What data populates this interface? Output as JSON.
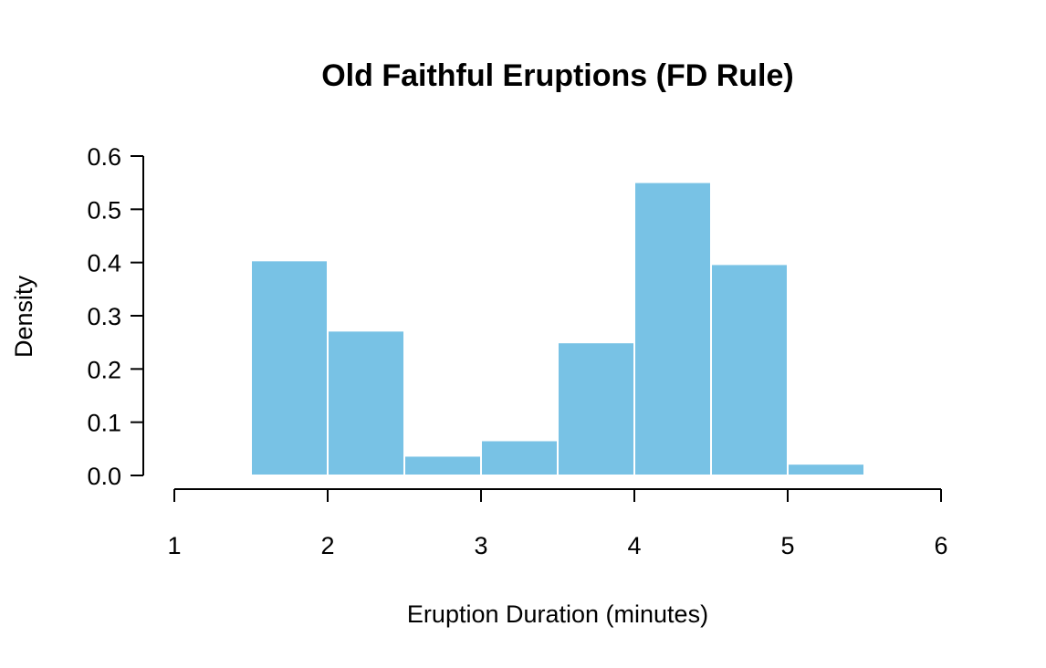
{
  "chart_data": {
    "type": "histogram",
    "title": "Old Faithful Eruptions (FD Rule)",
    "xlabel": "Eruption Duration (minutes)",
    "ylabel": "Density",
    "xlim": [
      1,
      6
    ],
    "ylim": [
      0,
      0.6
    ],
    "x_ticks": [
      1,
      2,
      3,
      4,
      5,
      6
    ],
    "y_ticks": [
      0.0,
      0.1,
      0.2,
      0.3,
      0.4,
      0.5,
      0.6
    ],
    "y_tick_labels": [
      "0.0",
      "0.1",
      "0.2",
      "0.3",
      "0.4",
      "0.5",
      "0.6"
    ],
    "bins": [
      {
        "start": 1.5,
        "end": 2.0,
        "density": 0.404
      },
      {
        "start": 2.0,
        "end": 2.5,
        "density": 0.272
      },
      {
        "start": 2.5,
        "end": 3.0,
        "density": 0.037
      },
      {
        "start": 3.0,
        "end": 3.5,
        "density": 0.066
      },
      {
        "start": 3.5,
        "end": 4.0,
        "density": 0.25
      },
      {
        "start": 4.0,
        "end": 4.5,
        "density": 0.551
      },
      {
        "start": 4.5,
        "end": 5.0,
        "density": 0.397
      },
      {
        "start": 5.0,
        "end": 5.5,
        "density": 0.022
      }
    ],
    "bar_color": "#78c2e5",
    "bar_border_color": "#ffffff",
    "grid": false,
    "legend": "none"
  }
}
